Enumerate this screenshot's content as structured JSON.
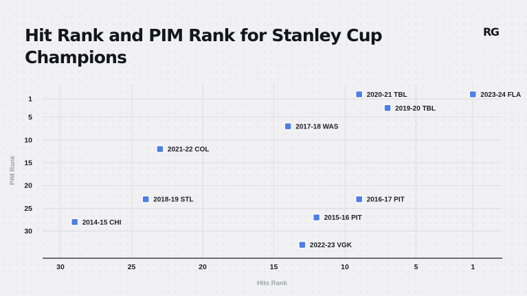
{
  "header": {
    "logo_text": "RG"
  },
  "chart_data": {
    "type": "scatter",
    "title": "Hit Rank and PIM Rank for Stanley Cup Champions",
    "xlabel": "Hits Rank",
    "ylabel": "PIM Rank",
    "xlim": [
      31,
      0.5
    ],
    "ylim": [
      0,
      35
    ],
    "x_reversed": true,
    "y_reversed": true,
    "xticks": [
      30,
      25,
      20,
      15,
      10,
      5,
      1
    ],
    "yticks": [
      1,
      5,
      10,
      15,
      20,
      25,
      30
    ],
    "grid": true,
    "marker_color": "#4f7ee8",
    "points": [
      {
        "label": "2020-21 TBL",
        "x": 9,
        "y": 0
      },
      {
        "label": "2023-24 FLA",
        "x": 1,
        "y": 0
      },
      {
        "label": "2019-20 TBL",
        "x": 7,
        "y": 3
      },
      {
        "label": "2017-18 WAS",
        "x": 14,
        "y": 7
      },
      {
        "label": "2021-22 COL",
        "x": 23,
        "y": 12
      },
      {
        "label": "2018-19 STL",
        "x": 24,
        "y": 23
      },
      {
        "label": "2016-17 PIT",
        "x": 9,
        "y": 23
      },
      {
        "label": "2015-16 PIT",
        "x": 12,
        "y": 27
      },
      {
        "label": "2014-15 CHI",
        "x": 29,
        "y": 28
      },
      {
        "label": "2022-23 VGK",
        "x": 13,
        "y": 33
      }
    ]
  }
}
